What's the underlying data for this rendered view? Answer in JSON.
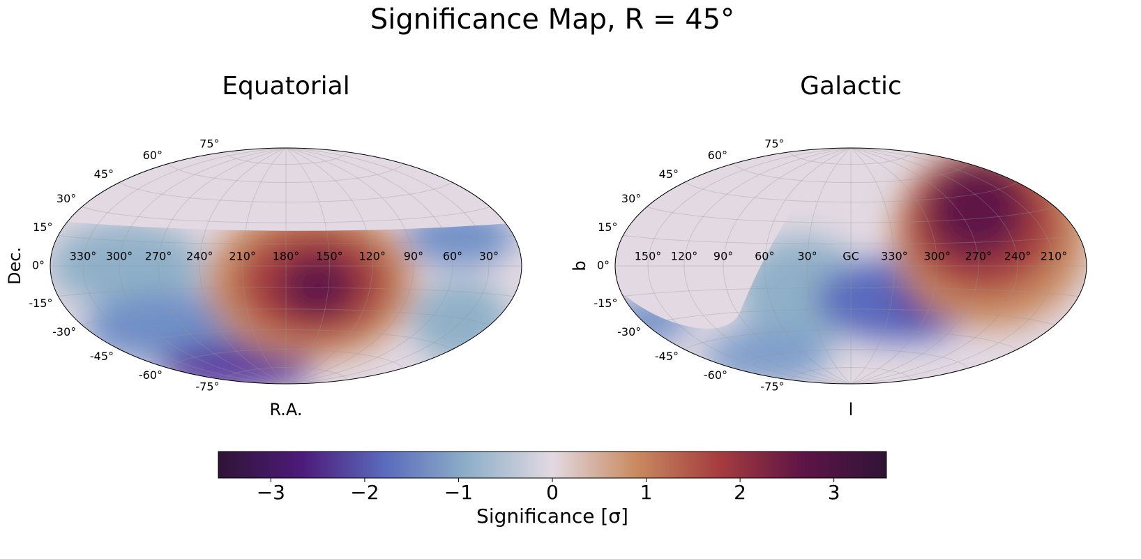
{
  "title": "Significance Map, R = 45°",
  "chart_data": [
    {
      "type": "map",
      "title": "Equatorial",
      "xlabel": "R.A.",
      "ylabel": "Dec.",
      "center": 180,
      "xticks": [
        {
          "value": 330,
          "label": "330°"
        },
        {
          "value": 300,
          "label": "300°"
        },
        {
          "value": 270,
          "label": "270°"
        },
        {
          "value": 240,
          "label": "240°"
        },
        {
          "value": 210,
          "label": "210°"
        },
        {
          "value": 180,
          "label": "180°"
        },
        {
          "value": 150,
          "label": "150°"
        },
        {
          "value": 120,
          "label": "120°"
        },
        {
          "value": 90,
          "label": "90°"
        },
        {
          "value": 60,
          "label": "60°"
        },
        {
          "value": 30,
          "label": "30°"
        }
      ],
      "yticks": [
        {
          "value": 75,
          "label": "75°"
        },
        {
          "value": 60,
          "label": "60°"
        },
        {
          "value": 45,
          "label": "45°"
        },
        {
          "value": 30,
          "label": "30°"
        },
        {
          "value": 15,
          "label": "15°"
        },
        {
          "value": 0,
          "label": "0°"
        },
        {
          "value": -15,
          "label": "-15°"
        },
        {
          "value": -30,
          "label": "-30°"
        },
        {
          "value": -45,
          "label": "-45°"
        },
        {
          "value": -60,
          "label": "-60°"
        },
        {
          "value": -75,
          "label": "-75°"
        }
      ],
      "grid": true
    },
    {
      "type": "map",
      "title": "Galactic",
      "xlabel": "l",
      "ylabel": "b",
      "center": 0,
      "xticks": [
        {
          "value": 150,
          "label": "150°"
        },
        {
          "value": 120,
          "label": "120°"
        },
        {
          "value": 90,
          "label": "90°"
        },
        {
          "value": 60,
          "label": "60°"
        },
        {
          "value": 30,
          "label": "30°"
        },
        {
          "value": 0,
          "label": "GC"
        },
        {
          "value": 330,
          "label": "330°"
        },
        {
          "value": 300,
          "label": "300°"
        },
        {
          "value": 270,
          "label": "270°"
        },
        {
          "value": 240,
          "label": "240°"
        },
        {
          "value": 210,
          "label": "210°"
        }
      ],
      "yticks": [
        {
          "value": 75,
          "label": "75°"
        },
        {
          "value": 60,
          "label": "60°"
        },
        {
          "value": 45,
          "label": "45°"
        },
        {
          "value": 30,
          "label": "30°"
        },
        {
          "value": 15,
          "label": "15°"
        },
        {
          "value": 0,
          "label": "0°"
        },
        {
          "value": -15,
          "label": "-15°"
        },
        {
          "value": -30,
          "label": "-30°"
        },
        {
          "value": -45,
          "label": "-45°"
        },
        {
          "value": -60,
          "label": "-60°"
        },
        {
          "value": -75,
          "label": "-75°"
        }
      ],
      "grid": true
    }
  ],
  "colorbar": {
    "label": "Significance [σ]",
    "clim": [
      -3.56,
      3.56
    ],
    "ticks": [
      {
        "value": -3,
        "label": "−3"
      },
      {
        "value": -2,
        "label": "−2"
      },
      {
        "value": -1,
        "label": "−1"
      },
      0,
      1,
      2,
      3
    ],
    "colors": [
      "#2f1436",
      "#4d1a7a",
      "#5a6bbd",
      "#8fb0c8",
      "#e2d9e2",
      "#c98a60",
      "#a63c3f",
      "#5e1446",
      "#2f1436"
    ]
  }
}
